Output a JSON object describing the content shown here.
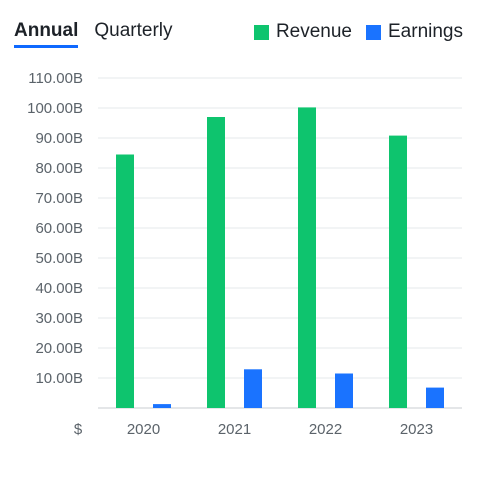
{
  "tabs": [
    {
      "label": "Annual",
      "active": true
    },
    {
      "label": "Quarterly",
      "active": false
    }
  ],
  "legend": [
    {
      "label": "Revenue",
      "color": "#0ec46e"
    },
    {
      "label": "Earnings",
      "color": "#1a73ff"
    }
  ],
  "chart_data": {
    "type": "bar",
    "categories": [
      "2020",
      "2021",
      "2022",
      "2023"
    ],
    "series": [
      {
        "name": "Revenue",
        "color": "#0ec46e",
        "values": [
          84.5,
          97.0,
          100.2,
          90.8
        ]
      },
      {
        "name": "Earnings",
        "color": "#1a73ff",
        "values": [
          1.3,
          12.9,
          11.5,
          6.8
        ]
      }
    ],
    "y_ticks": [
      "10.00B",
      "20.00B",
      "30.00B",
      "40.00B",
      "50.00B",
      "60.00B",
      "70.00B",
      "80.00B",
      "90.00B",
      "100.00B",
      "110.00B"
    ],
    "y_tick_values": [
      10,
      20,
      30,
      40,
      50,
      60,
      70,
      80,
      90,
      100,
      110
    ],
    "y_unit_label": "$",
    "ylim": [
      0,
      110
    ],
    "grid": true,
    "legend_position": "top-right"
  }
}
